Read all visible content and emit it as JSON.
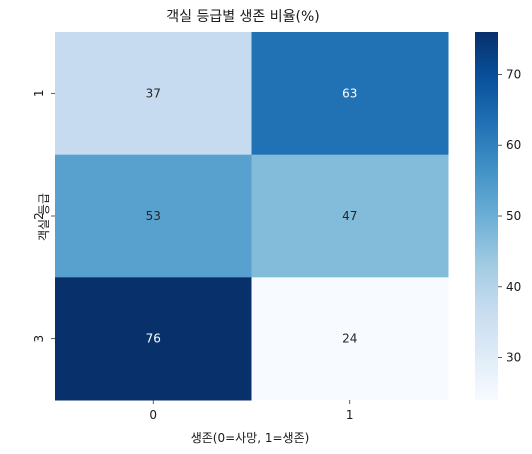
{
  "chart_data": {
    "type": "heatmap",
    "title": "객실 등급별 생존 비율(%)",
    "xlabel": "생존(0=사망, 1=생존)",
    "ylabel": "객실 등급",
    "x_categories": [
      "0",
      "1"
    ],
    "y_categories": [
      "1",
      "2",
      "3"
    ],
    "values": [
      [
        37,
        63
      ],
      [
        53,
        47
      ],
      [
        76,
        24
      ]
    ],
    "annotations": true,
    "colormap": "Blues",
    "color_range": [
      24,
      76
    ],
    "colorbar_ticks": [
      30,
      40,
      50,
      60,
      70
    ],
    "grid": false
  }
}
